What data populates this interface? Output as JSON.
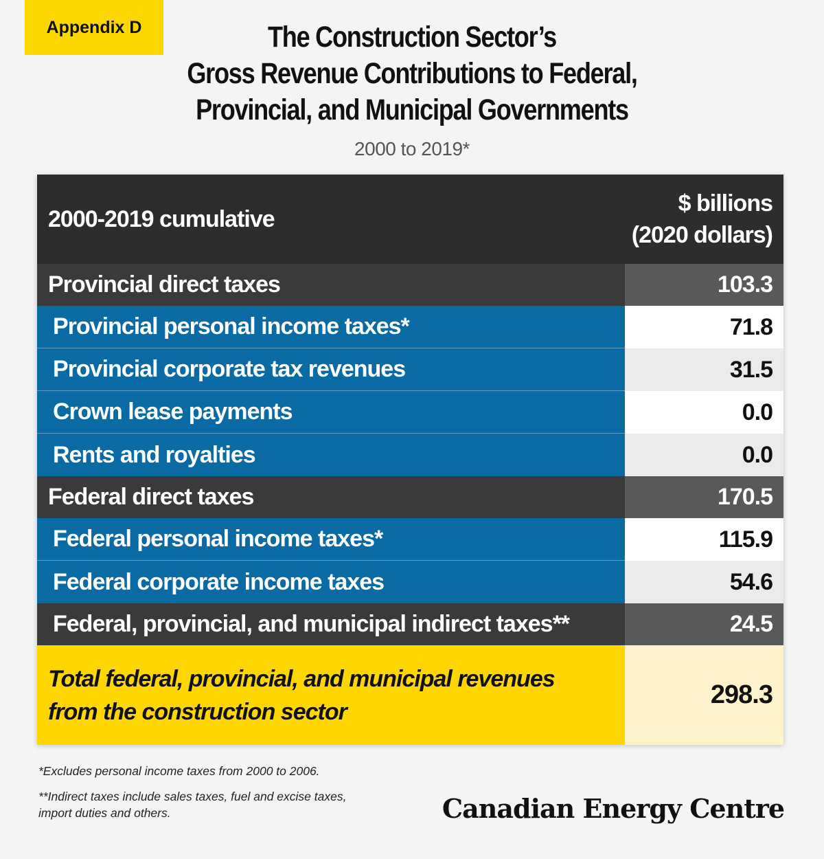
{
  "tag": "Appendix D",
  "title_lines": [
    "The Construction Sector’s",
    "Gross Revenue Contributions to Federal,",
    "Provincial, and Municipal Governments"
  ],
  "subtitle": "2000 to 2019*",
  "table": {
    "header": {
      "label": "2000-2019 cumulative",
      "value_line1": "$ billions",
      "value_line2": "(2020 dollars)"
    },
    "rows": [
      {
        "label": "Provincial direct taxes",
        "value": "103.3"
      },
      {
        "label": "Provincial personal income taxes*",
        "value": "71.8"
      },
      {
        "label": "Provincial corporate tax revenues",
        "value": "31.5"
      },
      {
        "label": "Crown lease payments",
        "value": "0.0"
      },
      {
        "label": "Rents and royalties",
        "value": "0.0"
      },
      {
        "label": "Federal direct taxes",
        "value": "170.5"
      },
      {
        "label": "Federal personal income taxes*",
        "value": "115.9"
      },
      {
        "label": "Federal corporate income taxes",
        "value": "54.6"
      },
      {
        "label": "Federal, provincial, and municipal indirect taxes**",
        "value": "24.5"
      }
    ],
    "total": {
      "label_line1": "Total federal, provincial, and municipal revenues",
      "label_line2": "from the construction sector",
      "value": "298.3"
    }
  },
  "notes": [
    "*Excludes personal income taxes from 2000 to 2006.",
    "**Indirect taxes include sales taxes, fuel and excise taxes,",
    "import duties and others."
  ],
  "logo": "Canadian Energy Centre",
  "colors": {
    "accent_yellow": "#ffd700",
    "sub_row_blue": "#0a6aa3",
    "header_dark": "#2d2d2d",
    "section_value_grey": "#58595b",
    "total_value_cream": "#fff3cc"
  }
}
